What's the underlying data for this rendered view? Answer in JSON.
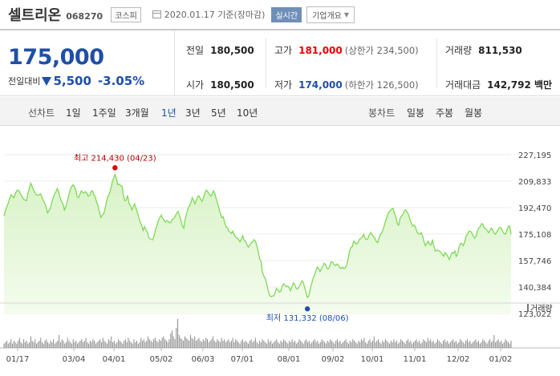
{
  "header": {
    "name": "셀트리온",
    "code": "068270",
    "market": "코스피",
    "date": "2020.01.17 기준(장마감)",
    "realtime": "실시간",
    "company_info": "기업개요"
  },
  "summary": {
    "price": "175,000",
    "change_label": "전일대비",
    "change": "5,500",
    "change_pct": "-3.05%",
    "prev_label": "전일",
    "prev": "180,500",
    "open_label": "시가",
    "open": "180,500",
    "high_label": "고가",
    "high": "181,000",
    "upper_limit": "(상한가 234,500)",
    "low_label": "저가",
    "low": "174,000",
    "lower_limit": "(하한가 126,500)",
    "volume_label": "거래량",
    "volume": "811,530",
    "amount_label": "거래대금",
    "amount": "142,792 백만"
  },
  "tabs": {
    "line_label": "선차트",
    "periods": [
      "1일",
      "1주일",
      "3개월",
      "1년",
      "3년",
      "5년",
      "10년"
    ],
    "active_period": "1년",
    "candle_label": "봉차트",
    "candles": [
      "일봉",
      "주봉",
      "월봉"
    ]
  },
  "colors": {
    "up": "#e00000",
    "down": "#1f4fa7",
    "line": "#7ed957",
    "fill": "#e6f7d8"
  },
  "chart_data": {
    "type": "area",
    "x_ticks": [
      "01/17",
      "03/04",
      "04/01",
      "05/02",
      "06/03",
      "07/01",
      "08/01",
      "09/02",
      "10/01",
      "11/01",
      "12/02",
      "01/02"
    ],
    "y_ticks": [
      "227,195",
      "209,833",
      "192,470",
      "175,108",
      "157,746",
      "140,384",
      "123,022"
    ],
    "ylim": [
      123022,
      227195
    ],
    "max_label": "최고 214,430 (04/23)",
    "min_label": "최저 131,332 (08/06)",
    "max": 214430,
    "min": 131332,
    "volume_legend": "거래량",
    "prices": [
      187000,
      190500,
      193000,
      195500,
      198500,
      201000,
      200000,
      199000,
      201500,
      203500,
      204000,
      203000,
      201000,
      199500,
      198000,
      197500,
      197000,
      202000,
      205000,
      208500,
      206500,
      204000,
      202500,
      201000,
      200500,
      201000,
      201500,
      199500,
      197000,
      195500,
      192500,
      189000,
      190500,
      192000,
      196000,
      199000,
      201500,
      203000,
      205000,
      202500,
      199000,
      196500,
      195000,
      191000,
      193000,
      196500,
      200000,
      204000,
      206000,
      207500,
      206500,
      204500,
      200000,
      199000,
      201000,
      203500,
      202500,
      202000,
      203000,
      202000,
      200000,
      200500,
      203000,
      203500,
      201000,
      199500,
      196000,
      193500,
      189500,
      186000,
      187500,
      188500,
      192000,
      196500,
      200000,
      201500,
      205000,
      209000,
      212000,
      214430,
      211500,
      207500,
      208000,
      207000,
      206500,
      200500,
      197000,
      197500,
      200500,
      195000,
      194000,
      191000,
      193000,
      195000,
      192000,
      189000,
      185500,
      183000,
      181000,
      177500,
      180000,
      178000,
      176500,
      173000,
      172000,
      171500,
      171500,
      174500,
      178500,
      181000,
      184500,
      186000,
      187500,
      185500,
      184000,
      183000,
      184000,
      183500,
      182500,
      183000,
      185000,
      185500,
      187000,
      189000,
      190000,
      187000,
      184000,
      180500,
      179000,
      185000,
      188500,
      192000,
      193500,
      195500,
      199000,
      197000,
      195000,
      197500,
      200000,
      200000,
      198000,
      196500,
      199000,
      202000,
      204000,
      203000,
      201500,
      200000,
      201000,
      203500,
      202000,
      198500,
      195500,
      192000,
      188500,
      186000,
      186500,
      183000,
      180000,
      179500,
      177000,
      176500,
      175500,
      177000,
      174500,
      173000,
      172500,
      171500,
      170000,
      172000,
      174000,
      171000,
      170500,
      168000,
      166500,
      168000,
      169500,
      170000,
      171500,
      170500,
      167500,
      163500,
      159000,
      157000,
      150000,
      147500,
      146000,
      142500,
      138500,
      135000,
      134000,
      134500,
      134500,
      136500,
      139500,
      138500,
      137000,
      137500,
      140500,
      142500,
      141500,
      140500,
      141000,
      140000,
      138000,
      140500,
      143000,
      142000,
      139500,
      139000,
      140500,
      142000,
      144500,
      143500,
      140500,
      137000,
      133500,
      134500,
      139000,
      142500,
      146000,
      148000,
      151000,
      153500,
      152500,
      150500,
      152500,
      154000,
      156000,
      155000,
      152500,
      152500,
      154500,
      157000,
      156500,
      155000,
      154500,
      155500,
      155000,
      153000,
      152500,
      153500,
      152500,
      153000,
      155000,
      159000,
      164000,
      166500,
      167000,
      170500,
      169500,
      168500,
      169500,
      171500,
      172500,
      173000,
      175000,
      172500,
      171500,
      172000,
      174500,
      176000,
      175000,
      173500,
      172500,
      170500,
      169500,
      172500,
      175000,
      176000,
      178500,
      181500,
      184500,
      187500,
      189500,
      190500,
      191500,
      192000,
      188500,
      186500,
      182000,
      181000,
      185500,
      187000,
      188000,
      190500,
      191000,
      189500,
      188000,
      184500,
      182500,
      180500,
      181000,
      179500,
      176500,
      175500,
      175000,
      176000,
      174000,
      170000,
      167500,
      169000,
      170500,
      168500,
      168000,
      171000,
      167500,
      164000,
      164500,
      164500,
      164000,
      163000,
      162000,
      160500,
      163000,
      162000,
      160500,
      158500,
      160500,
      163000,
      162500,
      164000,
      160500,
      162500,
      166500,
      169000,
      169000,
      167500,
      170000,
      174000,
      175000,
      177000,
      177000,
      176000,
      174000,
      172500,
      173500,
      177000,
      179000,
      180000,
      182000,
      181500,
      179000,
      178500,
      177500,
      176000,
      177500,
      179000,
      178000,
      175500,
      175000,
      177000,
      178500,
      179500,
      179000,
      177000,
      175500,
      175000,
      177500,
      180000,
      180500,
      175000
    ],
    "volume_levels": [
      3,
      4,
      5,
      3,
      4,
      6,
      3,
      5,
      4,
      3,
      5,
      7,
      4,
      3,
      6,
      4,
      5,
      3,
      4,
      8,
      5,
      4,
      6,
      3,
      4,
      5,
      7,
      4,
      3,
      5,
      6,
      4,
      3,
      5,
      4,
      6,
      3,
      4,
      5,
      9,
      4,
      6,
      5,
      3,
      4,
      7,
      5,
      4,
      3,
      6,
      4,
      5,
      3,
      4,
      5,
      6,
      4,
      5,
      7,
      4,
      3,
      5,
      4,
      6,
      5,
      3,
      4,
      5,
      6,
      4,
      7,
      5,
      4,
      3,
      6,
      5,
      8,
      4,
      5,
      3,
      4,
      6,
      5,
      4,
      3,
      5,
      6,
      4,
      7,
      5,
      4,
      3,
      6,
      4,
      5,
      3,
      4,
      7,
      5,
      6,
      4,
      5,
      8,
      6,
      5,
      4,
      6,
      7,
      5,
      4,
      6,
      5,
      7,
      8,
      6,
      5,
      4,
      6,
      10,
      12,
      8,
      6,
      14,
      20,
      9,
      7,
      6,
      5,
      8,
      7,
      6,
      5,
      9,
      7,
      6,
      8,
      5,
      6,
      7,
      5,
      4,
      6,
      5,
      7,
      6,
      4,
      5,
      6,
      8,
      5,
      4,
      6,
      5,
      4,
      7,
      5,
      6,
      4,
      5,
      6,
      4,
      5,
      7,
      4,
      6,
      5,
      4,
      3,
      5,
      6,
      4,
      5,
      4,
      3,
      5,
      6,
      4,
      5,
      7,
      4,
      3,
      5,
      4,
      6,
      5,
      4,
      3,
      6,
      4,
      5,
      3,
      4,
      5,
      6,
      4,
      3,
      5,
      4,
      6,
      5,
      4,
      3,
      5,
      4,
      6,
      4,
      5,
      3,
      4,
      6,
      5,
      4,
      3,
      5,
      6,
      4,
      5,
      3,
      4,
      5,
      6,
      4,
      5,
      3,
      4,
      6,
      5,
      4,
      3,
      5,
      4,
      6,
      5,
      4,
      3,
      5,
      6,
      4,
      5,
      3,
      4,
      5,
      6,
      4,
      3,
      5,
      4,
      6,
      5,
      4,
      3,
      5,
      4,
      6,
      5,
      7,
      4,
      3,
      5,
      6,
      4,
      5,
      8,
      4,
      5,
      6,
      4,
      3,
      5,
      4,
      6,
      5,
      4,
      3,
      5,
      4,
      6,
      4,
      5,
      3,
      4,
      6,
      5,
      4,
      3,
      5,
      6,
      4,
      5,
      3,
      4,
      5,
      6,
      4,
      5,
      3,
      4,
      6,
      5,
      4,
      7,
      5,
      6,
      4,
      5,
      3,
      4,
      6,
      5,
      4,
      3,
      5,
      6,
      4,
      5,
      3,
      4,
      5,
      6,
      4,
      5,
      3,
      4,
      6,
      5,
      4,
      3,
      5,
      6,
      4,
      5,
      3,
      4,
      5,
      6,
      4,
      5,
      3,
      4,
      6,
      5,
      4,
      3,
      5,
      6,
      4,
      5,
      9,
      4,
      5,
      6,
      4,
      5,
      3,
      4,
      6,
      5,
      4,
      3,
      5
    ]
  }
}
